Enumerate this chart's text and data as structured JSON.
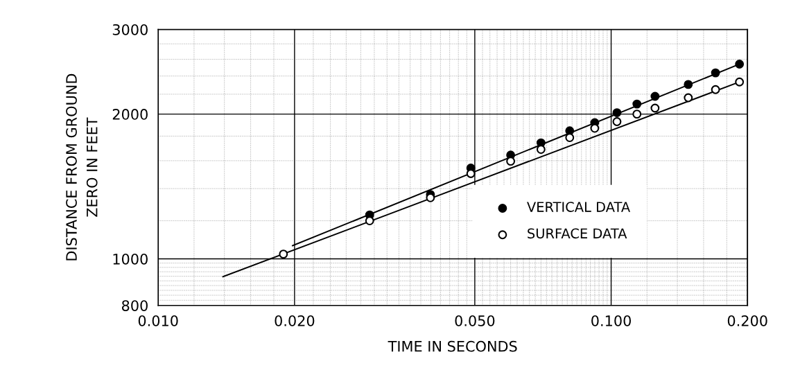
{
  "chart_data": {
    "type": "scatter",
    "xlabel": "TIME IN SECONDS",
    "ylabel": "DISTANCE FROM GROUND\nZERO IN FEET",
    "log": "xy",
    "grid": true,
    "legend": "bottom right",
    "marker": "circle",
    "xlim": [
      0.01,
      0.2
    ],
    "ylim": [
      800,
      3000
    ],
    "xticks": [
      {
        "value": 0.01,
        "label": "0.010"
      },
      {
        "value": 0.02,
        "label": "0.020"
      },
      {
        "value": 0.05,
        "label": "0.050"
      },
      {
        "value": 0.1,
        "label": "0.100"
      },
      {
        "value": 0.2,
        "label": "0.200"
      }
    ],
    "yticks": [
      800,
      1000,
      2000,
      3000
    ],
    "series": [
      {
        "name": "VERTICAL DATA",
        "color": "#000000",
        "x": [
          0.0293,
          0.0399,
          0.049,
          0.06,
          0.07,
          0.081,
          0.092,
          0.103,
          0.114,
          0.125,
          0.148,
          0.17,
          0.192
        ],
        "values": [
          1234,
          1361,
          1545,
          1644,
          1743,
          1846,
          1920,
          2014,
          2099,
          2178,
          2305,
          2437,
          2541
        ]
      },
      {
        "name": "SURFACE DATA",
        "color": "#ffffff",
        "x": [
          0.0189,
          0.0293,
          0.0399,
          0.049,
          0.06,
          0.07,
          0.081,
          0.092,
          0.103,
          0.114,
          0.125,
          0.148,
          0.17,
          0.192
        ],
        "values": [
          1023,
          1200,
          1340,
          1504,
          1596,
          1689,
          1787,
          1869,
          1929,
          2000,
          2058,
          2163,
          2249,
          2333
        ]
      },
      {
        "type": "line",
        "marker": "none",
        "color": "#000000",
        "x": [
          0.0198,
          0.192
        ],
        "values": [
          1065,
          2541
        ]
      },
      {
        "type": "line",
        "marker": "none",
        "color": "#000000",
        "x": [
          0.0139,
          0.192
        ],
        "values": [
          918,
          2333
        ]
      }
    ]
  }
}
